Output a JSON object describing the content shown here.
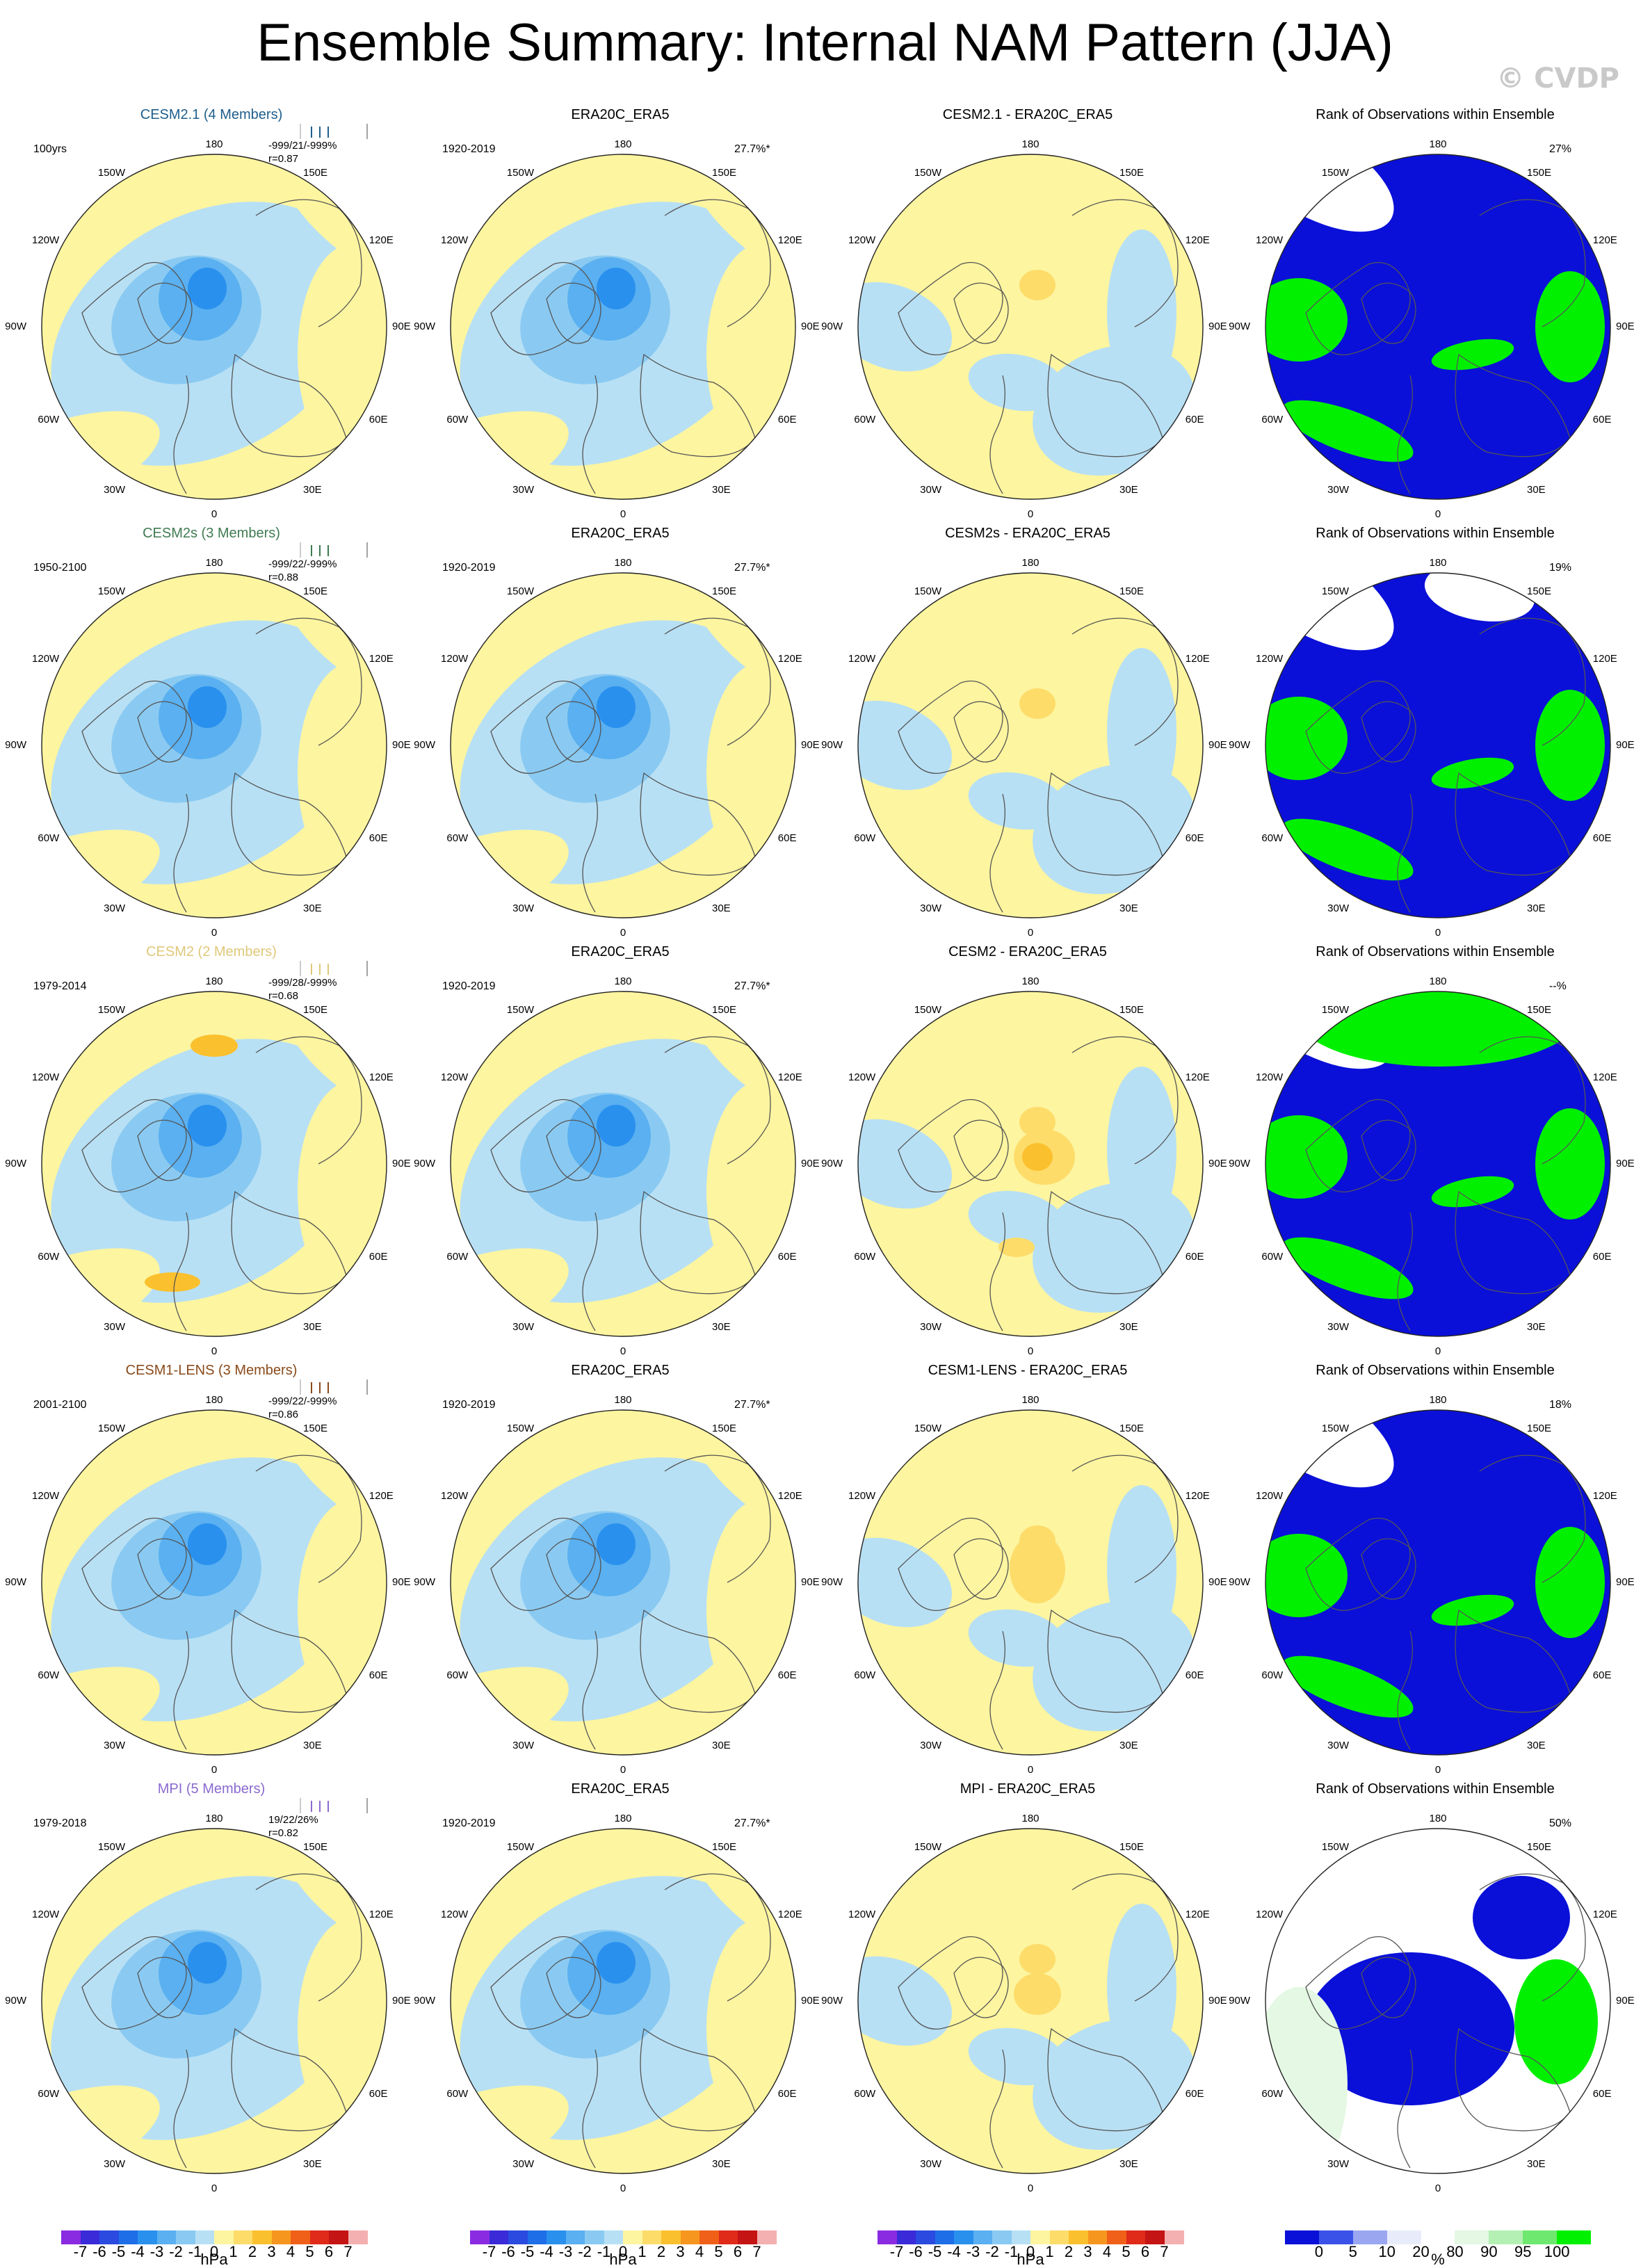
{
  "title": "Ensemble Summary: Internal NAM Pattern (JJA)",
  "watermark": "© CVDP",
  "lon_labels": {
    "top": "180",
    "bottom": "0",
    "left": "90W",
    "right": "90E",
    "ul": "150W",
    "ur": "150E",
    "lu": "120W",
    "ru": "120E",
    "ll": "60W",
    "rl": "60E",
    "bl": "30W",
    "br": "30E"
  },
  "columns": [
    {
      "key": "model",
      "color_scale": "diverging"
    },
    {
      "key": "obs",
      "title": "ERA20C_ERA5",
      "period": "1920-2019",
      "pct": "27.7%*",
      "color_scale": "diverging"
    },
    {
      "key": "diff",
      "color_scale": "diverging"
    },
    {
      "key": "rank",
      "title": "Rank of Observations within Ensemble",
      "color_scale": "rank"
    }
  ],
  "rows": [
    {
      "model": "CESM2.1 (4 Members)",
      "model_color": "#1f5e8c",
      "period": "100yrs",
      "stats1": "-999/21/-999%",
      "stats2": "r=0.87",
      "diff_title": "CESM2.1 - ERA20C_ERA5",
      "rank_pct": "27%",
      "variant": 0
    },
    {
      "model": "CESM2s (3 Members)",
      "model_color": "#3f7a52",
      "period": "1950-2100",
      "stats1": "-999/22/-999%",
      "stats2": "r=0.88",
      "diff_title": "CESM2s - ERA20C_ERA5",
      "rank_pct": "19%",
      "variant": 1
    },
    {
      "model": "CESM2 (2 Members)",
      "model_color": "#e0c87a",
      "period": "1979-2014",
      "stats1": "-999/28/-999%",
      "stats2": "r=0.68",
      "diff_title": "CESM2 - ERA20C_ERA5",
      "rank_pct": "--%",
      "variant": 2
    },
    {
      "model": "CESM1-LENS (3 Members)",
      "model_color": "#8a4a1a",
      "period": "2001-2100",
      "stats1": "-999/22/-999%",
      "stats2": "r=0.86",
      "diff_title": "CESM1-LENS - ERA20C_ERA5",
      "rank_pct": "18%",
      "variant": 3
    },
    {
      "model": "MPI (5 Members)",
      "model_color": "#8a6ad0",
      "period": "1979-2018",
      "stats1": "19/22/26%",
      "stats2": "r=0.82",
      "diff_title": "MPI - ERA20C_ERA5",
      "rank_pct": "50%",
      "variant": 4
    }
  ],
  "colorbar_diverging": {
    "labels": [
      "-7",
      "-6",
      "-5",
      "-4",
      "-3",
      "-2",
      "-1",
      "0",
      "1",
      "2",
      "3",
      "4",
      "5",
      "6",
      "7"
    ],
    "colors": [
      "#8a2be2",
      "#3a2ad8",
      "#2a4ae0",
      "#1e6ee8",
      "#2a90ee",
      "#5ab0f0",
      "#8acaf2",
      "#b8e0f4",
      "#fdf5a0",
      "#fddc6a",
      "#fbc02d",
      "#f7961f",
      "#f06018",
      "#e02a1a",
      "#c41414",
      "#f4b0b0"
    ],
    "unit": "hPa"
  },
  "colorbar_rank": {
    "labels": [
      "0",
      "5",
      "10",
      "20",
      "80",
      "90",
      "95",
      "100"
    ],
    "colors": [
      "#0a10d8",
      "#3a52e8",
      "#9aa6f0",
      "#e8ecfa",
      "#ffffff",
      "#e4f8e4",
      "#b4f0b4",
      "#6ee86e",
      "#00f000"
    ],
    "unit": "%"
  },
  "chart_data": [
    {
      "type": "heatmap",
      "title": "ERA20C_ERA5",
      "subtitle": "1920-2019",
      "pct_variance": "27.7%*",
      "unit": "hPa",
      "projection": "polar stereographic, Northern Hemisphere",
      "scale_range": [
        -7,
        7
      ]
    },
    {
      "type": "heatmap",
      "title": "CESM2.1 (4 Members)",
      "period": "100yrs",
      "pattern_corr": 0.87,
      "unit": "hPa"
    },
    {
      "type": "heatmap",
      "title": "CESM2s (3 Members)",
      "period": "1950-2100",
      "pattern_corr": 0.88,
      "unit": "hPa"
    },
    {
      "type": "heatmap",
      "title": "CESM2 (2 Members)",
      "period": "1979-2014",
      "pattern_corr": 0.68,
      "unit": "hPa"
    },
    {
      "type": "heatmap",
      "title": "CESM1-LENS (3 Members)",
      "period": "2001-2100",
      "pattern_corr": 0.86,
      "unit": "hPa"
    },
    {
      "type": "heatmap",
      "title": "MPI (5 Members)",
      "period": "1979-2018",
      "pattern_corr": 0.82,
      "unit": "hPa"
    },
    {
      "type": "heatmap",
      "title": "Rank of Observations within Ensemble",
      "unit": "%",
      "rank_pcts": {
        "CESM2.1": "27%",
        "CESM2s": "19%",
        "CESM2": "--%",
        "CESM1-LENS": "18%",
        "MPI": "50%"
      }
    }
  ]
}
